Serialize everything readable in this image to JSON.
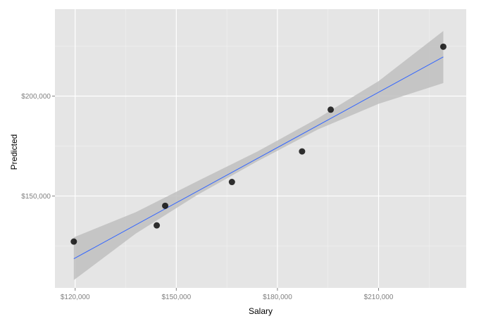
{
  "chart_data": {
    "type": "scatter",
    "title": "",
    "xlabel": "Salary",
    "ylabel": "Predicted",
    "xlim": [
      114000,
      236000
    ],
    "ylim": [
      104000,
      243500
    ],
    "x_ticks": [
      120000,
      150000,
      180000,
      210000
    ],
    "x_tick_labels": [
      "$120,000",
      "$150,000",
      "$180,000",
      "$210,000"
    ],
    "y_ticks": [
      150000,
      200000
    ],
    "y_tick_labels": [
      "$150,000",
      "$200,000"
    ],
    "grid": true,
    "points": [
      {
        "x": 119600,
        "y": 127200
      },
      {
        "x": 144200,
        "y": 135300
      },
      {
        "x": 146700,
        "y": 145100
      },
      {
        "x": 166500,
        "y": 157000
      },
      {
        "x": 187300,
        "y": 172300
      },
      {
        "x": 195800,
        "y": 193200
      },
      {
        "x": 229200,
        "y": 224700
      }
    ],
    "fit_line": {
      "x": [
        119600,
        229200
      ],
      "y": [
        118600,
        219600
      ]
    },
    "confidence_band": {
      "x": [
        119600,
        138000,
        156000,
        174000,
        192000,
        210000,
        229200
      ],
      "lower": [
        107900,
        131200,
        150300,
        167300,
        183300,
        196100,
        206500
      ],
      "upper": [
        129300,
        141900,
        157200,
        172200,
        188900,
        207500,
        232600
      ]
    },
    "colors": {
      "panel_background": "#e5e5e5",
      "grid_major": "#ffffff",
      "grid_minor": "#f2f2f2",
      "points": "#000000",
      "fit_line": "#3366ff",
      "band": "#c0c0c0"
    }
  }
}
